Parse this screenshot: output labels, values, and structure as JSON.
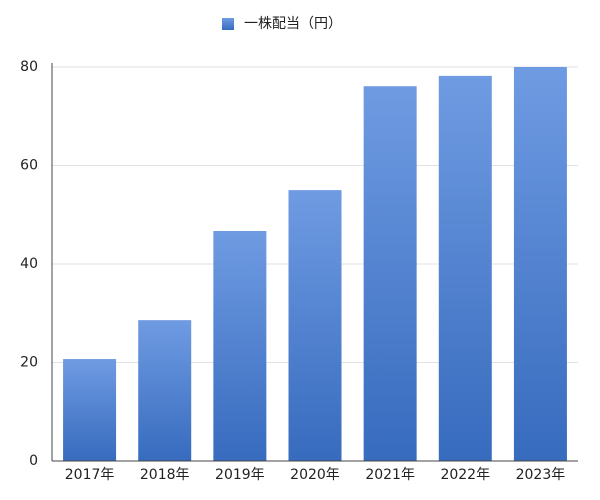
{
  "chart_data": {
    "type": "bar",
    "categories": [
      "2017年",
      "2018年",
      "2019年",
      "2020年",
      "2021年",
      "2022年",
      "2023年"
    ],
    "series": [
      {
        "name": "一株配当（円）",
        "color": "#3f7ad8",
        "values": [
          20.7,
          28.6,
          46.7,
          55,
          76.1,
          78.2,
          80
        ]
      }
    ],
    "ylim": [
      0,
      80
    ],
    "yticks": [
      0,
      20,
      40,
      60,
      80
    ],
    "grid": true,
    "legend": "top"
  }
}
